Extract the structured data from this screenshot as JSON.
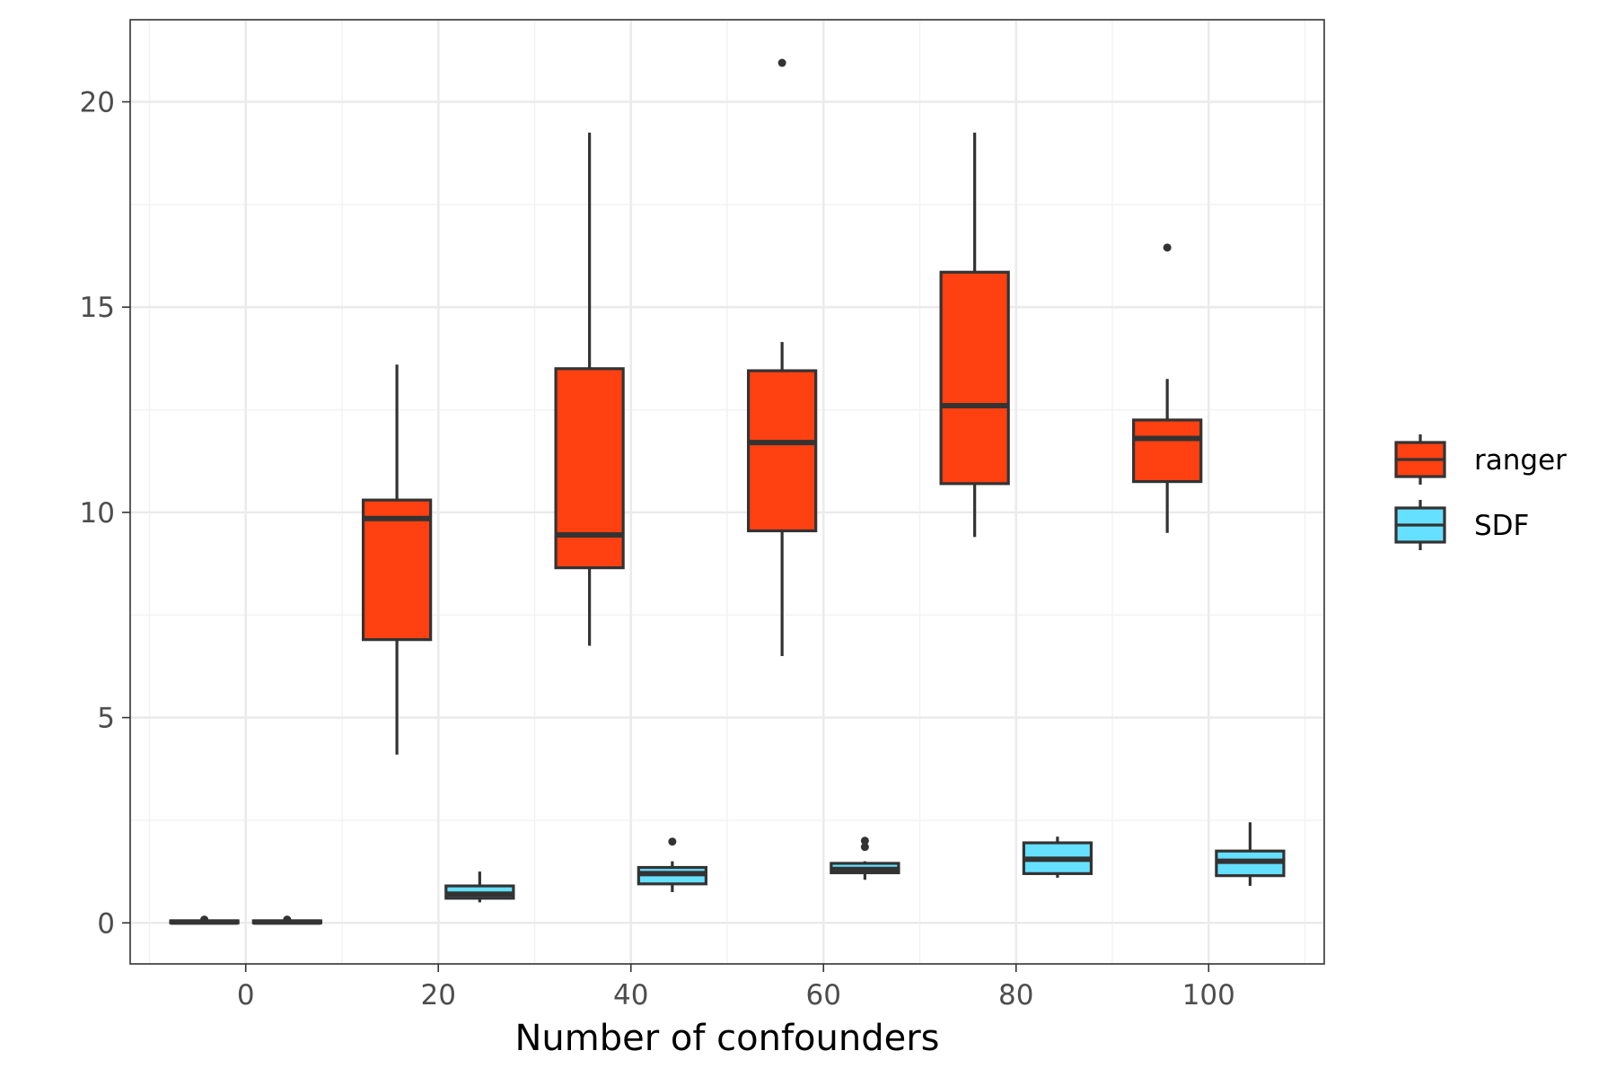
{
  "chart_data": {
    "type": "boxplot",
    "title": "",
    "xlabel": "Number of confounders",
    "ylabel": "",
    "xlim": [
      -12,
      112
    ],
    "ylim": [
      -1,
      22
    ],
    "x_ticks": [
      0,
      20,
      40,
      60,
      80,
      100
    ],
    "y_ticks": [
      0,
      5,
      10,
      15,
      20
    ],
    "grid": true,
    "legend_position": "right",
    "series": [
      {
        "name": "ranger",
        "color": "#FF4010",
        "boxes": [
          {
            "x": 0,
            "lower": 0.0,
            "q1": 0.0,
            "median": 0.02,
            "q3": 0.05,
            "upper": 0.07,
            "outliers": [
              0.08
            ]
          },
          {
            "x": 20,
            "lower": 4.1,
            "q1": 6.9,
            "median": 9.85,
            "q3": 10.3,
            "upper": 13.6,
            "outliers": []
          },
          {
            "x": 40,
            "lower": 6.75,
            "q1": 8.65,
            "median": 9.45,
            "q3": 13.5,
            "upper": 19.25,
            "outliers": []
          },
          {
            "x": 60,
            "lower": 6.5,
            "q1": 9.55,
            "median": 11.7,
            "q3": 13.45,
            "upper": 14.15,
            "outliers": [
              20.95
            ]
          },
          {
            "x": 80,
            "lower": 9.4,
            "q1": 10.7,
            "median": 12.6,
            "q3": 15.85,
            "upper": 19.25,
            "outliers": []
          },
          {
            "x": 100,
            "lower": 9.5,
            "q1": 10.75,
            "median": 11.8,
            "q3": 12.25,
            "upper": 13.25,
            "outliers": [
              16.45
            ]
          }
        ]
      },
      {
        "name": "SDF",
        "color": "#66E0FF",
        "boxes": [
          {
            "x": 0,
            "lower": 0.0,
            "q1": 0.0,
            "median": 0.02,
            "q3": 0.05,
            "upper": 0.07,
            "outliers": [
              0.08
            ]
          },
          {
            "x": 20,
            "lower": 0.5,
            "q1": 0.6,
            "median": 0.7,
            "q3": 0.9,
            "upper": 1.25,
            "outliers": []
          },
          {
            "x": 40,
            "lower": 0.75,
            "q1": 0.95,
            "median": 1.2,
            "q3": 1.35,
            "upper": 1.5,
            "outliers": [
              1.98
            ]
          },
          {
            "x": 60,
            "lower": 1.05,
            "q1": 1.22,
            "median": 1.3,
            "q3": 1.45,
            "upper": 1.5,
            "outliers": [
              1.85,
              2.0
            ]
          },
          {
            "x": 80,
            "lower": 1.1,
            "q1": 1.2,
            "median": 1.55,
            "q3": 1.95,
            "upper": 2.1,
            "outliers": []
          },
          {
            "x": 100,
            "lower": 0.9,
            "q1": 1.15,
            "median": 1.5,
            "q3": 1.75,
            "upper": 2.45,
            "outliers": []
          }
        ]
      }
    ]
  }
}
